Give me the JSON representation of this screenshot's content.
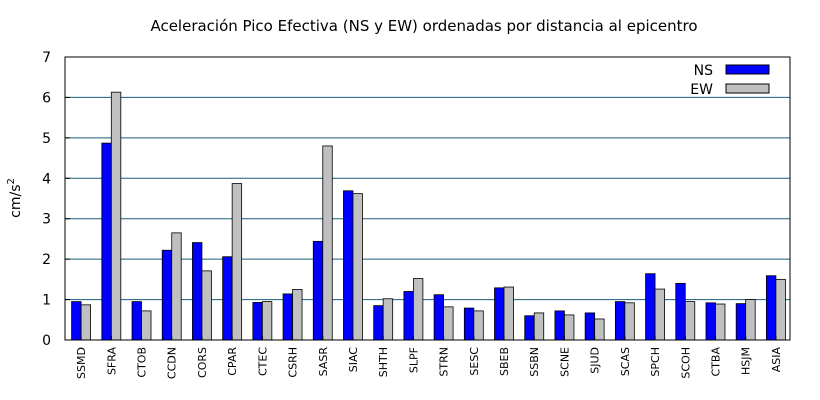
{
  "chart_data": {
    "type": "bar",
    "title": "Aceleración Pico Efectiva (NS y EW) ordenadas por distancia al epicentro",
    "ylabel": "cm/s",
    "ylabel_sup": "2",
    "xlabel": "",
    "ylim": [
      0,
      7
    ],
    "yticks": [
      "0",
      "1",
      "2",
      "3",
      "4",
      "5",
      "6",
      "7"
    ],
    "grid": true,
    "legend_position": "top-right",
    "categories": [
      "SSMD",
      "SFRA",
      "CTOB",
      "CCDN",
      "CORS",
      "CPAR",
      "CTEC",
      "CSRH",
      "SASR",
      "SIAC",
      "SHTH",
      "SLPF",
      "STRN",
      "SESC",
      "SBEB",
      "SSBN",
      "SCNE",
      "SJUD",
      "SCAS",
      "SPCH",
      "SCOH",
      "CTBA",
      "HSJM",
      "ASIA"
    ],
    "series": [
      {
        "name": "NS",
        "color": "#0000ff",
        "values": [
          0.95,
          4.87,
          0.95,
          2.22,
          2.41,
          2.06,
          0.93,
          1.14,
          2.44,
          3.69,
          0.85,
          1.2,
          1.12,
          0.79,
          1.29,
          0.6,
          0.72,
          0.67,
          0.95,
          1.64,
          1.4,
          0.92,
          0.9,
          1.59
        ]
      },
      {
        "name": "EW",
        "color": "#c0c0c0",
        "values": [
          0.87,
          6.13,
          0.72,
          2.65,
          1.71,
          3.87,
          0.95,
          1.25,
          4.8,
          3.62,
          1.02,
          1.52,
          0.82,
          0.72,
          1.31,
          0.67,
          0.62,
          0.52,
          0.92,
          1.26,
          0.95,
          0.89,
          1.0,
          1.5
        ]
      }
    ]
  }
}
